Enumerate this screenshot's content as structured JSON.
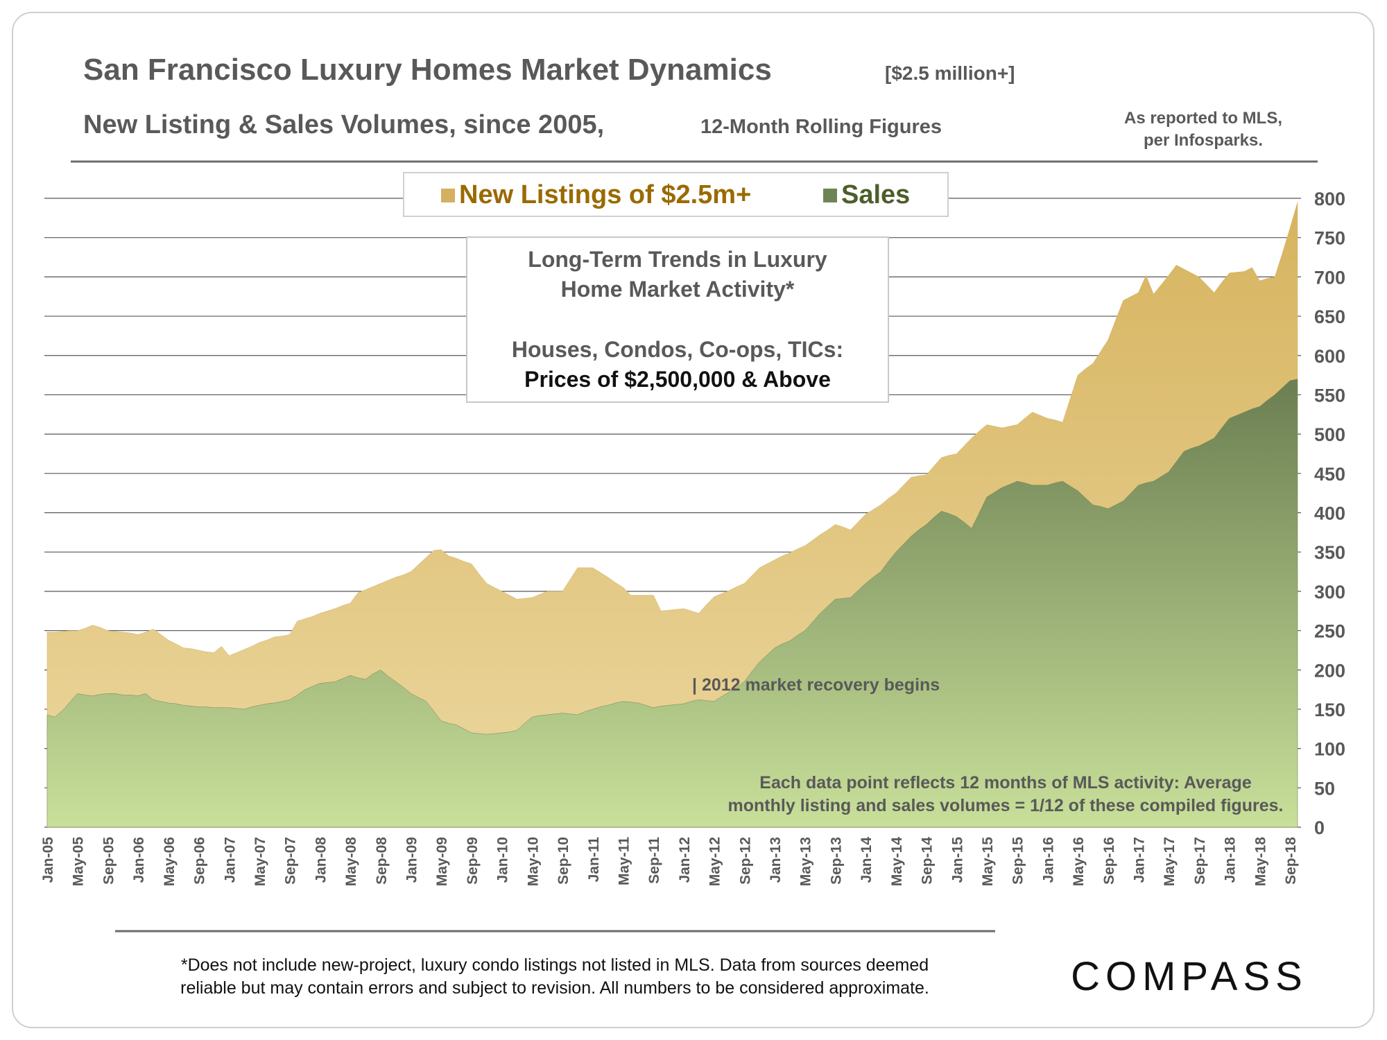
{
  "chart_data": {
    "type": "area",
    "title": "San Francisco Luxury Homes Market Dynamics",
    "title_note": "[$2.5 million+]",
    "subtitle": "New Listing & Sales Volumes, since 2005,",
    "subtitle_note": "12-Month Rolling Figures",
    "source": [
      "As reported to MLS,",
      "per Infosparks."
    ],
    "box_title": [
      "Long-Term Trends in Luxury",
      "Home Market Activity*"
    ],
    "box_text": [
      "Houses, Condos, Co-ops, TICs:",
      "Prices of $2,500,000 & Above"
    ],
    "recovery_note": "| 2012 market recovery begins",
    "data_note": [
      "Each data point reflects 12 months of MLS activity:  Average",
      "monthly listing and sales volumes = 1/12 of these compiled figures."
    ],
    "footnote": [
      "*Does not include new-project, luxury condo listings not listed in MLS. Data from sources deemed",
      "reliable but may contain errors and subject to revision.  All numbers to be considered approximate."
    ],
    "logo": "COMPASS",
    "categories": [
      "Jan-05",
      null,
      null,
      null,
      "May-05",
      null,
      null,
      null,
      "Sep-05",
      null,
      null,
      null,
      "Jan-06",
      null,
      null,
      null,
      "May-06",
      null,
      null,
      null,
      "Sep-06",
      null,
      null,
      null,
      "Jan-07",
      null,
      null,
      null,
      "May-07",
      null,
      null,
      null,
      "Sep-07",
      null,
      null,
      null,
      "Jan-08",
      null,
      null,
      null,
      "May-08",
      null,
      null,
      null,
      "Sep-08",
      null,
      null,
      null,
      "Jan-09",
      null,
      null,
      null,
      "May-09",
      null,
      null,
      null,
      "Sep-09",
      null,
      null,
      null,
      "Jan-10",
      null,
      null,
      null,
      "May-10",
      null,
      null,
      null,
      "Sep-10",
      null,
      null,
      null,
      "Jan-11",
      null,
      null,
      null,
      "May-11",
      null,
      null,
      null,
      "Sep-11",
      null,
      null,
      null,
      "Jan-12",
      null,
      null,
      null,
      "May-12",
      null,
      null,
      null,
      "Sep-12",
      null,
      null,
      null,
      "Jan-13",
      null,
      null,
      null,
      "May-13",
      null,
      null,
      null,
      "Sep-13",
      null,
      null,
      null,
      "Jan-14",
      null,
      null,
      null,
      "May-14",
      null,
      null,
      null,
      "Sep-14",
      null,
      null,
      null,
      "Jan-15",
      null,
      null,
      null,
      "May-15",
      null,
      null,
      null,
      "Sep-15",
      null,
      null,
      null,
      "Jan-16",
      null,
      null,
      null,
      "May-16",
      null,
      null,
      null,
      "Sep-16",
      null,
      null,
      null,
      "Jan-17",
      null,
      null,
      null,
      "May-17",
      null,
      null,
      null,
      "Sep-17",
      null,
      null,
      null,
      "Jan-18",
      null,
      null,
      null,
      "May-18",
      null,
      null,
      null,
      "Sep-18",
      null
    ],
    "series": [
      {
        "name": "New Listings of $2.5m+",
        "color": "#d4b060",
        "legend_color": "#9a6a00",
        "values": [
          248,
          248,
          249,
          250,
          250,
          253,
          257,
          254,
          250,
          249,
          248,
          247,
          245,
          248,
          252,
          245,
          238,
          233,
          228,
          227,
          225,
          223,
          222,
          230,
          218,
          222,
          226,
          230,
          235,
          238,
          242,
          243,
          245,
          262,
          265,
          268,
          272,
          275,
          278,
          282,
          285,
          298,
          302,
          306,
          310,
          314,
          318,
          321,
          325,
          334,
          343,
          352,
          353,
          345,
          342,
          338,
          335,
          322,
          310,
          305,
          300,
          295,
          290,
          291,
          292,
          296,
          300,
          300,
          300,
          315,
          330,
          330,
          330,
          324,
          318,
          311,
          305,
          295,
          295,
          295,
          295,
          275,
          276,
          277,
          278,
          275,
          272,
          283,
          293,
          297,
          301,
          306,
          310,
          320,
          330,
          335,
          340,
          345,
          349,
          354,
          358,
          365,
          372,
          378,
          385,
          382,
          378,
          388,
          398,
          404,
          410,
          418,
          425,
          435,
          445,
          447,
          448,
          459,
          470,
          473,
          475,
          485,
          495,
          504,
          512,
          510,
          508,
          510,
          512,
          520,
          528,
          524,
          520,
          518,
          515,
          545,
          575,
          583,
          590,
          605,
          620,
          645,
          670,
          675,
          680,
          702,
          678,
          690,
          702,
          715,
          710,
          705,
          700,
          690,
          680,
          693,
          705,
          706,
          707,
          712,
          695,
          698,
          700,
          730,
          762,
          795
        ]
      },
      {
        "name": "Sales",
        "color": "#6f8456",
        "legend_color": "#4d5e2a",
        "values": [
          143,
          140,
          148,
          159,
          170,
          168,
          167,
          169,
          170,
          170,
          168,
          168,
          167,
          170,
          162,
          160,
          158,
          157,
          155,
          154,
          153,
          153,
          152,
          152,
          152,
          151,
          150,
          153,
          155,
          157,
          158,
          160,
          162,
          168,
          175,
          179,
          183,
          184,
          185,
          189,
          193,
          190,
          188,
          195,
          200,
          192,
          185,
          178,
          170,
          165,
          160,
          148,
          135,
          132,
          130,
          125,
          120,
          119,
          118,
          119,
          120,
          121,
          123,
          132,
          140,
          142,
          143,
          144,
          145,
          144,
          143,
          147,
          150,
          153,
          155,
          158,
          160,
          159,
          158,
          155,
          152,
          154,
          155,
          156,
          157,
          160,
          162,
          161,
          160,
          166,
          172,
          178,
          185,
          198,
          210,
          219,
          228,
          233,
          237,
          244,
          250,
          261,
          272,
          281,
          290,
          291,
          292,
          301,
          310,
          318,
          325,
          338,
          350,
          360,
          370,
          378,
          385,
          394,
          402,
          399,
          395,
          388,
          380,
          400,
          420,
          426,
          432,
          436,
          440,
          438,
          435,
          435,
          435,
          438,
          440,
          434,
          428,
          419,
          410,
          408,
          405,
          410,
          415,
          425,
          435,
          438,
          440,
          446,
          452,
          465,
          478,
          482,
          485,
          490,
          495,
          508,
          520,
          524,
          528,
          532,
          535,
          543,
          550,
          559,
          568,
          570
        ]
      }
    ],
    "ylim": [
      0,
      800
    ],
    "yticks": [
      0,
      50,
      100,
      150,
      200,
      250,
      300,
      350,
      400,
      450,
      500,
      550,
      600,
      650,
      700,
      750,
      800
    ],
    "grid": true
  }
}
